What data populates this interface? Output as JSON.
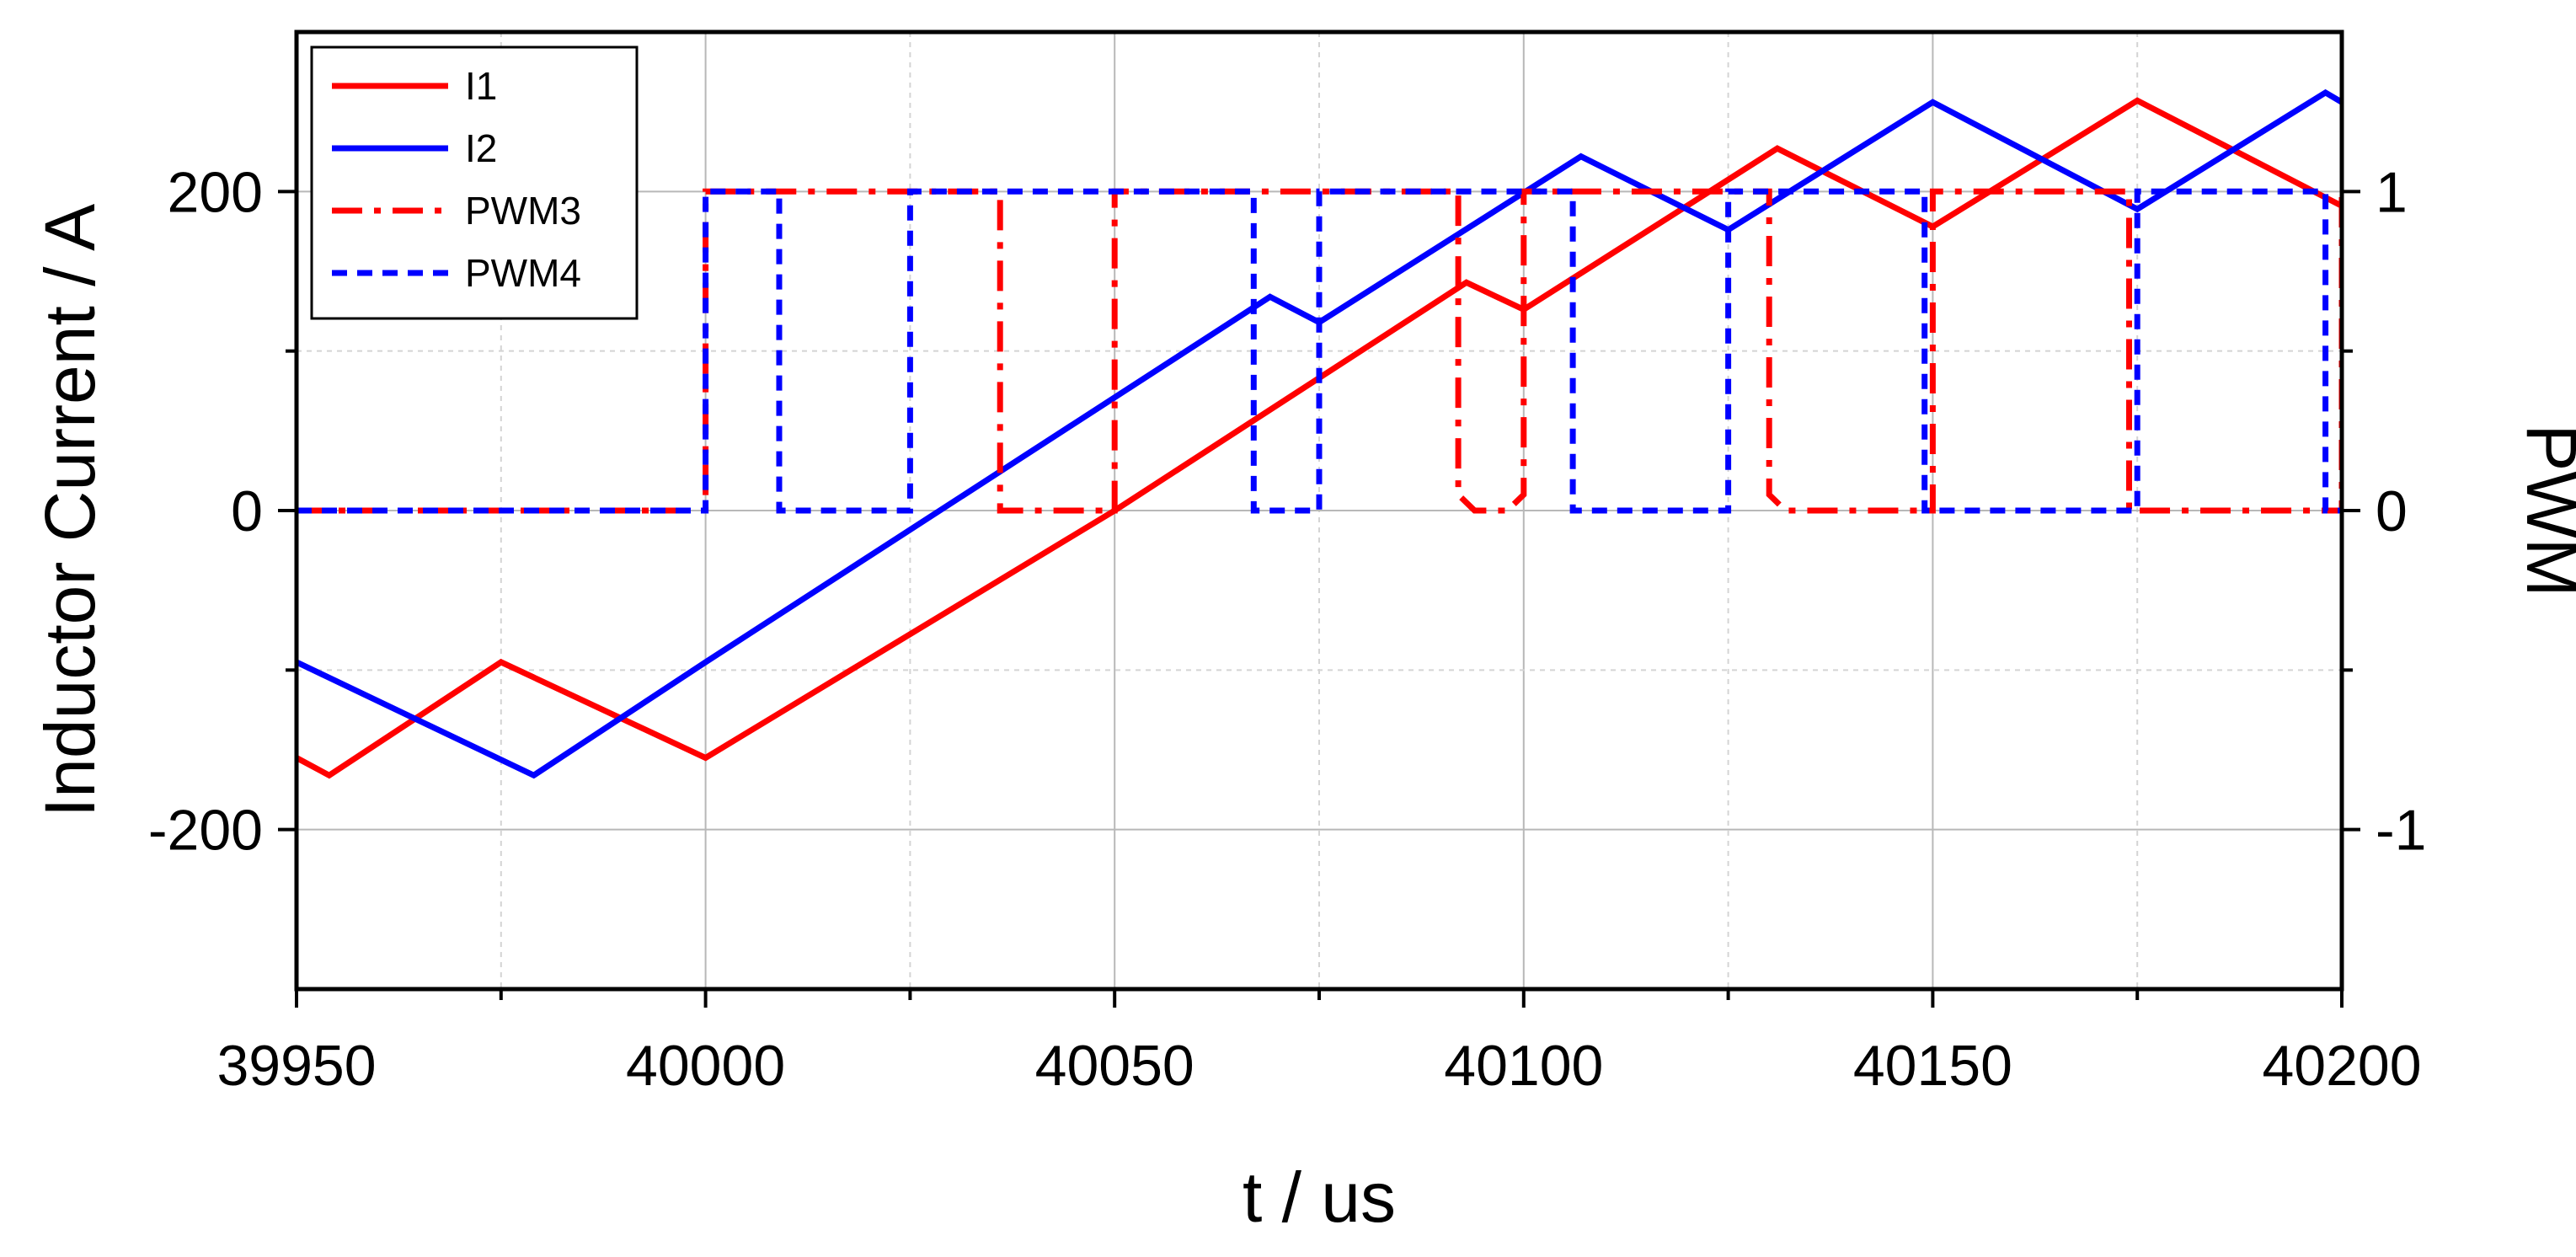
{
  "chart_data": {
    "type": "line",
    "xlabel": "t / us",
    "ylabel": "Inductor Current / A",
    "y2label": "PWM",
    "xlim": [
      39950,
      40200
    ],
    "ylim": [
      -300,
      300
    ],
    "y2lim": [
      -1.5,
      1.5
    ],
    "x_ticks": [
      39950,
      40000,
      40050,
      40100,
      40150,
      40200
    ],
    "y_ticks": [
      -200,
      0,
      200
    ],
    "y2_ticks": [
      -1,
      0,
      1
    ],
    "grid": true,
    "legend_position": "top-left",
    "series": [
      {
        "name": "I1",
        "axis": "left",
        "color": "#ff0000",
        "style": "solid",
        "points": [
          [
            39950,
            -155
          ],
          [
            39954,
            -166
          ],
          [
            39975,
            -95
          ],
          [
            40000,
            -155
          ],
          [
            40050,
            0
          ],
          [
            40093,
            143
          ],
          [
            40100,
            126
          ],
          [
            40131,
            227
          ],
          [
            40150,
            178
          ],
          [
            40175,
            257
          ],
          [
            40200,
            191
          ]
        ]
      },
      {
        "name": "I2",
        "axis": "left",
        "color": "#0000ff",
        "style": "solid",
        "points": [
          [
            39950,
            -95
          ],
          [
            39979,
            -166
          ],
          [
            40000,
            -95
          ],
          [
            40069,
            134
          ],
          [
            40075,
            118
          ],
          [
            40107,
            222
          ],
          [
            40125,
            176
          ],
          [
            40150,
            256
          ],
          [
            40175,
            189
          ],
          [
            40198,
            262
          ],
          [
            40200,
            256
          ]
        ]
      },
      {
        "name": "PWM3",
        "axis": "right",
        "color": "#ff0000",
        "style": "dashdot",
        "points": [
          [
            39950,
            0
          ],
          [
            40000,
            0
          ],
          [
            40000,
            1
          ],
          [
            40036,
            1
          ],
          [
            40036,
            0
          ],
          [
            40050,
            0
          ],
          [
            40050,
            1
          ],
          [
            40092,
            1
          ],
          [
            40092,
            0.05
          ],
          [
            40094,
            0
          ],
          [
            40098,
            0
          ],
          [
            40100,
            0.05
          ],
          [
            40100,
            1
          ],
          [
            40130,
            1
          ],
          [
            40130,
            0.05
          ],
          [
            40132,
            0
          ],
          [
            40150,
            0
          ],
          [
            40150,
            1
          ],
          [
            40174,
            1
          ],
          [
            40174,
            0
          ],
          [
            40200,
            0
          ],
          [
            40200,
            1
          ]
        ]
      },
      {
        "name": "PWM4",
        "axis": "right",
        "color": "#0000ff",
        "style": "dash",
        "points": [
          [
            39950,
            0
          ],
          [
            40000,
            0
          ],
          [
            40000,
            1
          ],
          [
            40009,
            1
          ],
          [
            40009,
            0
          ],
          [
            40025,
            0
          ],
          [
            40025,
            1
          ],
          [
            40067,
            1
          ],
          [
            40067,
            0
          ],
          [
            40075,
            0
          ],
          [
            40075,
            1
          ],
          [
            40106,
            1
          ],
          [
            40106,
            0
          ],
          [
            40125,
            0
          ],
          [
            40125,
            1
          ],
          [
            40149,
            1
          ],
          [
            40149,
            0
          ],
          [
            40175,
            0
          ],
          [
            40175,
            1
          ],
          [
            40198,
            1
          ],
          [
            40198,
            0
          ],
          [
            40200,
            0
          ]
        ]
      }
    ]
  }
}
